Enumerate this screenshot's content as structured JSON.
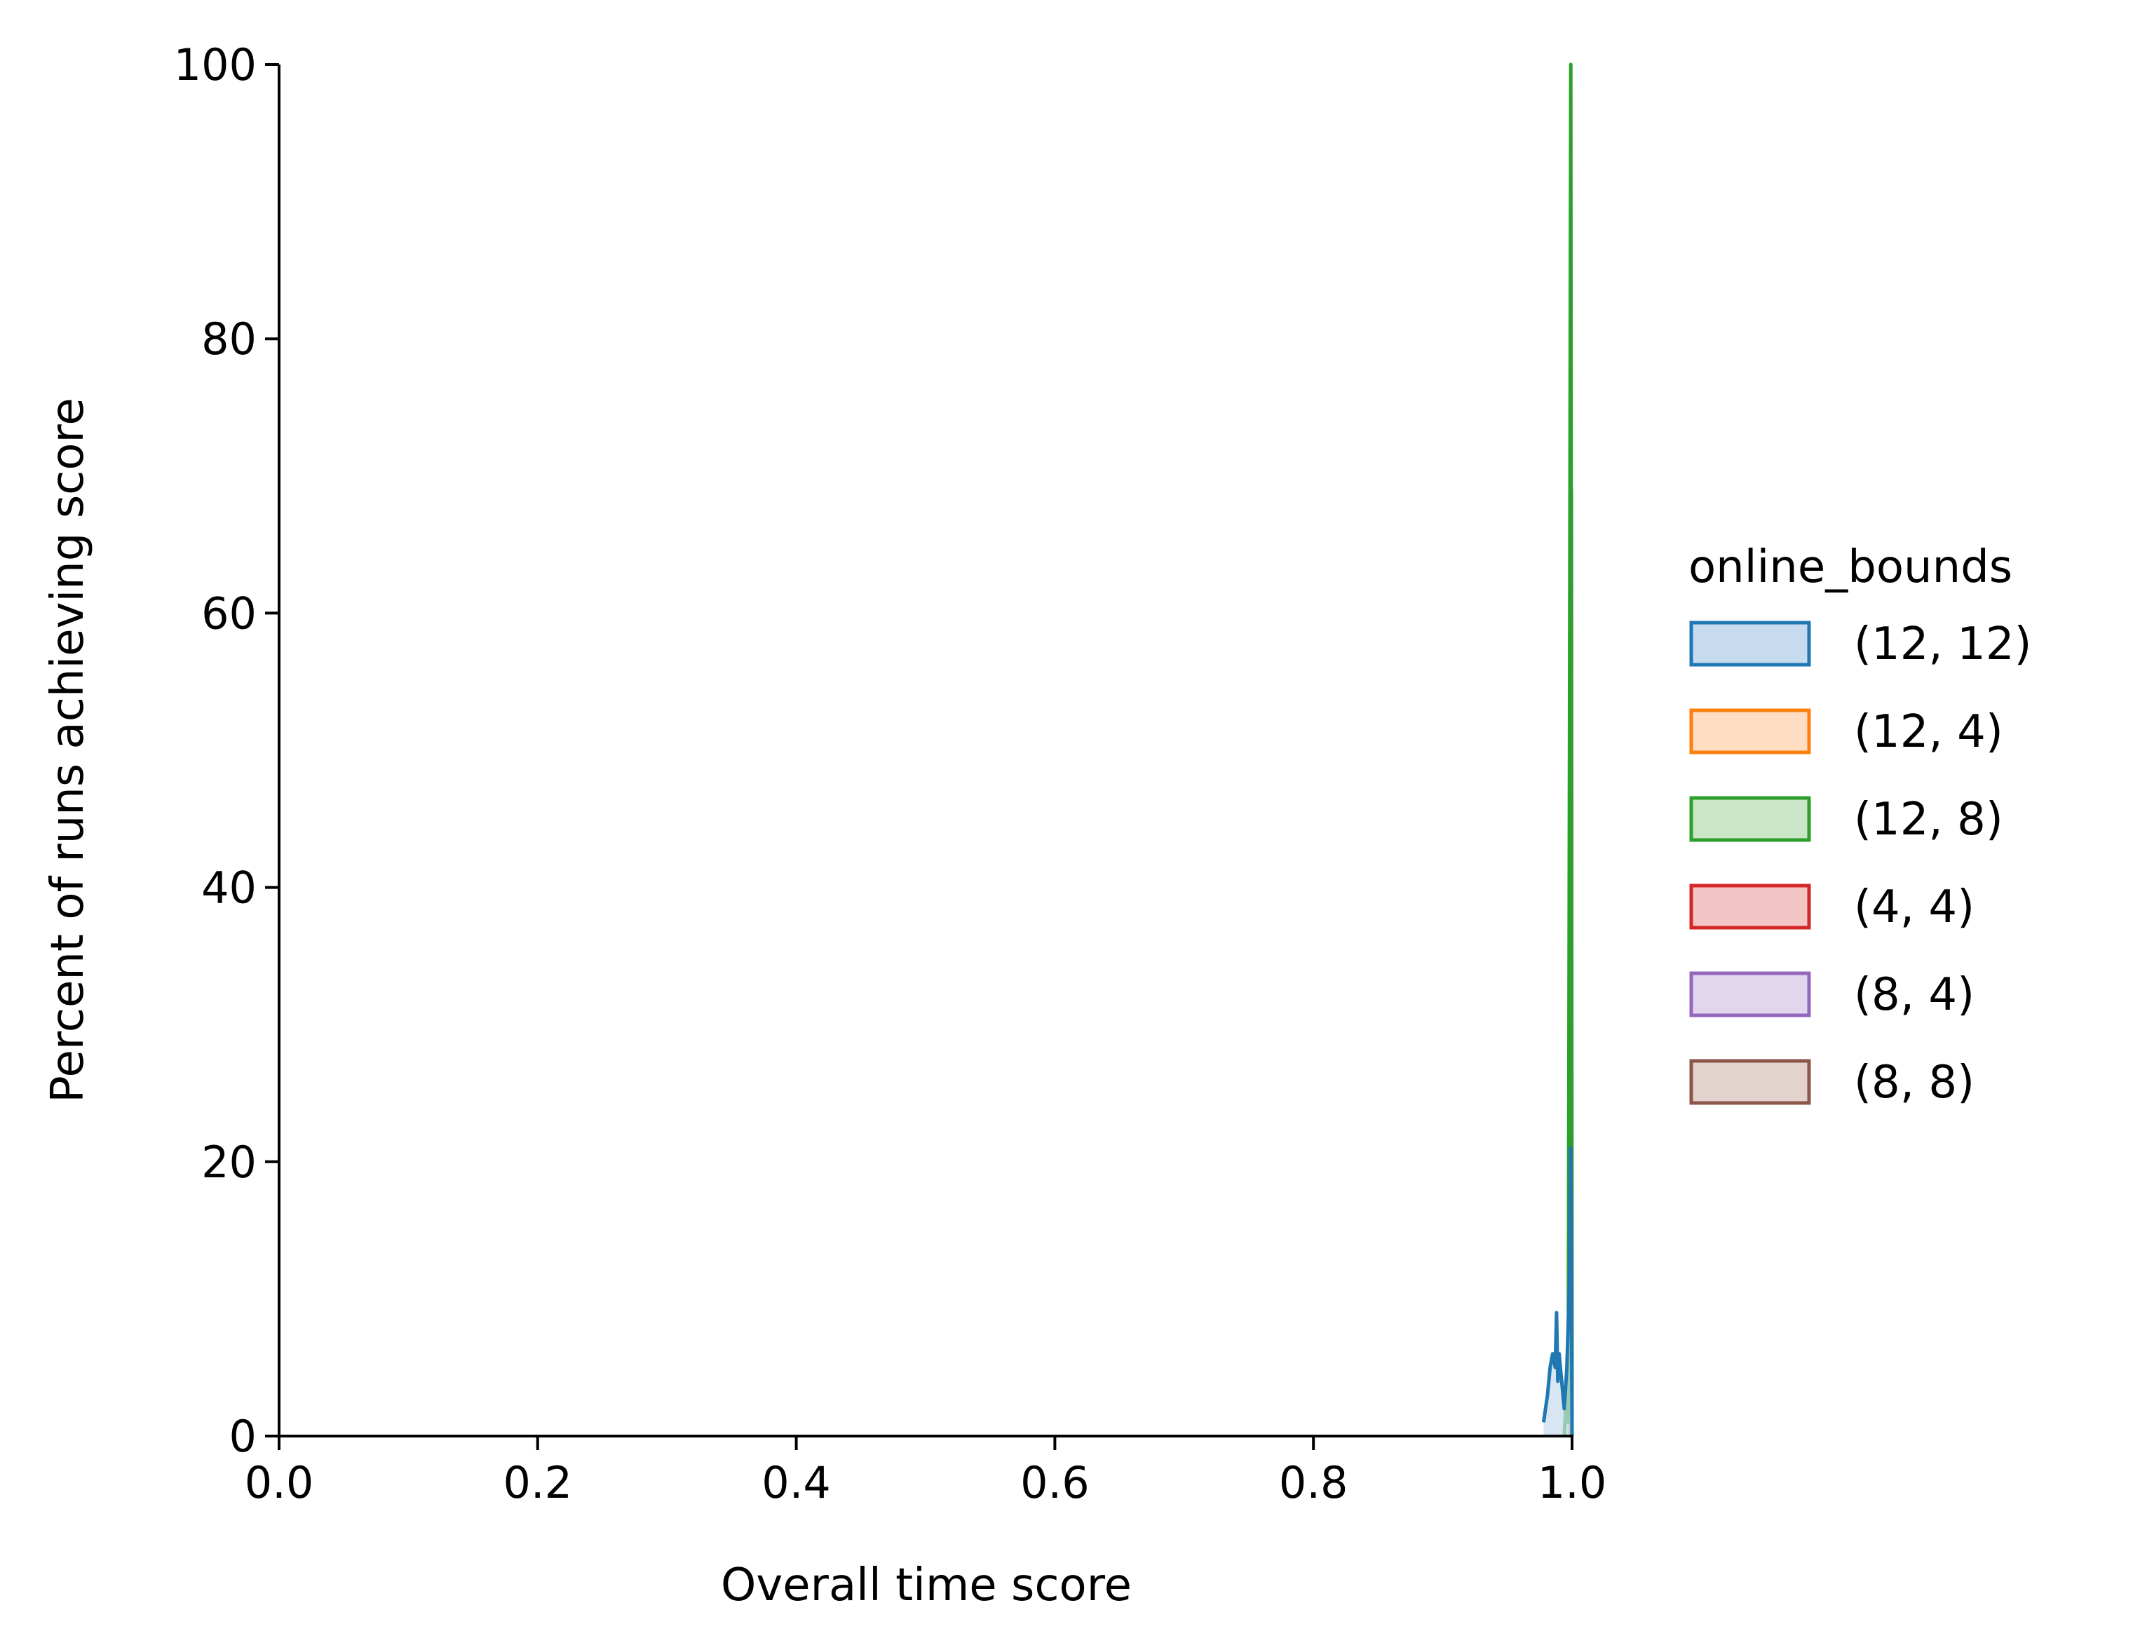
{
  "chart_data": {
    "type": "line",
    "title": "",
    "xlabel": "Overall time score",
    "ylabel": "Percent of runs achieving score",
    "xlim": [
      0.0,
      1.0
    ],
    "ylim": [
      0,
      100
    ],
    "xticks": [
      "0.0",
      "0.2",
      "0.4",
      "0.6",
      "0.8",
      "1.0"
    ],
    "yticks": [
      "0",
      "20",
      "40",
      "60",
      "80",
      "100"
    ],
    "xtick_values": [
      0.0,
      0.2,
      0.4,
      0.6,
      0.8,
      1.0
    ],
    "ytick_values": [
      0,
      20,
      40,
      60,
      80,
      100
    ],
    "grid": false,
    "legend": {
      "title": "online_bounds",
      "placement": "center-right, outside the axes"
    },
    "series": [
      {
        "name": "(12, 12)",
        "color": "#1f77b4",
        "fill": "#c6dbed",
        "points": [
          [
            0.978,
            1
          ],
          [
            0.981,
            3
          ],
          [
            0.983,
            5
          ],
          [
            0.985,
            6
          ],
          [
            0.987,
            5
          ],
          [
            0.988,
            9
          ],
          [
            0.989,
            4
          ],
          [
            0.99,
            6
          ],
          [
            0.992,
            4
          ],
          [
            0.994,
            2
          ],
          [
            0.996,
            5
          ],
          [
            0.998,
            11
          ],
          [
            0.999,
            21
          ],
          [
            1.0,
            0
          ]
        ]
      },
      {
        "name": "(12, 4)",
        "color": "#ff7f0e",
        "fill": "#ffddc2",
        "points": [
          [
            0.9985,
            0
          ],
          [
            0.9995,
            0.5
          ],
          [
            1.0,
            0
          ]
        ]
      },
      {
        "name": "(12, 8)",
        "color": "#2ca02c",
        "fill": "#c9e7c6",
        "points": [
          [
            0.994,
            0
          ],
          [
            0.995,
            2
          ],
          [
            0.997,
            1
          ],
          [
            0.999,
            100
          ],
          [
            1.0,
            0
          ]
        ]
      },
      {
        "name": "(4, 4)",
        "color": "#d62728",
        "fill": "#f3c6c6",
        "points": [
          [
            0.9985,
            0
          ],
          [
            0.9995,
            1
          ],
          [
            1.0,
            0
          ]
        ]
      },
      {
        "name": "(8, 4)",
        "color": "#9467bd",
        "fill": "#e2d6ee",
        "points": [
          [
            0.9985,
            0
          ],
          [
            0.9995,
            1
          ],
          [
            1.0,
            0
          ]
        ]
      },
      {
        "name": "(8, 8)",
        "color": "#8c564b",
        "fill": "#e2d3cf",
        "points": [
          [
            0.9985,
            0
          ],
          [
            0.9995,
            69
          ],
          [
            1.0,
            0
          ]
        ]
      }
    ]
  }
}
